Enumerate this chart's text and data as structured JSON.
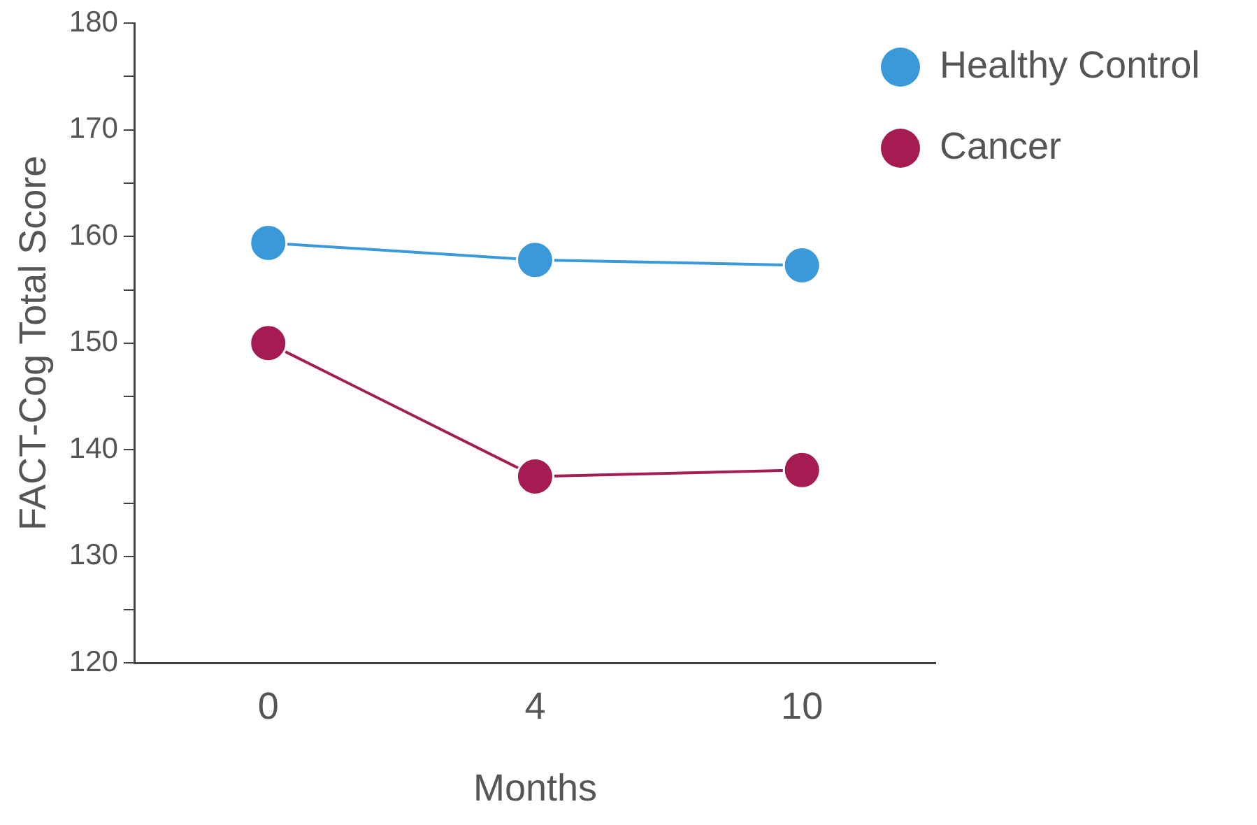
{
  "chart_data": {
    "type": "line",
    "xlabel": "Months",
    "ylabel": "FACT-Cog Total Score",
    "categories": [
      "0",
      "4",
      "10"
    ],
    "series": [
      {
        "name": "Healthy Control",
        "color": "#3a9ad9",
        "values": [
          159.4,
          157.8,
          157.3
        ]
      },
      {
        "name": "Cancer",
        "color": "#a51c52",
        "values": [
          150,
          137.5,
          138.1
        ]
      }
    ],
    "ylim": [
      120,
      180
    ],
    "yticks": [
      120,
      {
        "value": 125,
        "label": null
      },
      130,
      {
        "value": 135,
        "label": null
      },
      140,
      {
        "value": 145,
        "label": null
      },
      150,
      {
        "value": 155,
        "label": null
      },
      160,
      {
        "value": 165,
        "label": null
      },
      170,
      {
        "value": 175,
        "label": null
      },
      180
    ],
    "grid": false,
    "legend": "top right",
    "marker": "circle",
    "line_style": "solid"
  }
}
